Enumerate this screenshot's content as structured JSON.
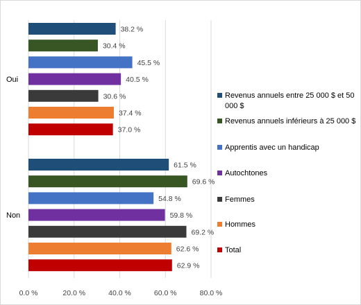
{
  "chart_data": {
    "type": "bar",
    "orientation": "horizontal",
    "categories": [
      "Oui",
      "Non"
    ],
    "series": [
      {
        "name": "Total",
        "color": "#C00000",
        "values": [
          37.0,
          62.9
        ],
        "labels": [
          "37.0 %",
          "62.9 %"
        ]
      },
      {
        "name": "Hommes",
        "color": "#ED7D31",
        "values": [
          37.4,
          62.6
        ],
        "labels": [
          "37.4 %",
          "62.6 %"
        ]
      },
      {
        "name": "Femmes",
        "color": "#3A3A3A",
        "values": [
          30.6,
          69.2
        ],
        "labels": [
          "30.6 %",
          "69.2 %"
        ]
      },
      {
        "name": "Autochtones",
        "color": "#7030A0",
        "values": [
          40.5,
          59.8
        ],
        "labels": [
          "40.5 %",
          "59.8 %"
        ]
      },
      {
        "name": "Apprentis avec un handicap",
        "color": "#4472C4",
        "values": [
          45.5,
          54.8
        ],
        "labels": [
          "45.5 %",
          "54.8 %"
        ]
      },
      {
        "name": "Revenus annuels inférieurs à 25 000 $",
        "color": "#375623",
        "values": [
          30.4,
          69.6
        ],
        "labels": [
          "30.4 %",
          "69.6 %"
        ]
      },
      {
        "name": "Revenus annuels entre 25 000 $ et 50 000 $",
        "color": "#1F4E79",
        "values": [
          38.2,
          61.5
        ],
        "labels": [
          "38.2 %",
          "61.5 %"
        ]
      }
    ],
    "xlim": [
      0,
      80
    ],
    "xticks": [
      0,
      20,
      40,
      60,
      80
    ],
    "xtick_labels": [
      "0.0 %",
      "20.0 %",
      "40.0 %",
      "60.0 %",
      "80.0 %"
    ],
    "grid": true,
    "legend_position": "right",
    "title": "",
    "xlabel": "",
    "ylabel": ""
  }
}
